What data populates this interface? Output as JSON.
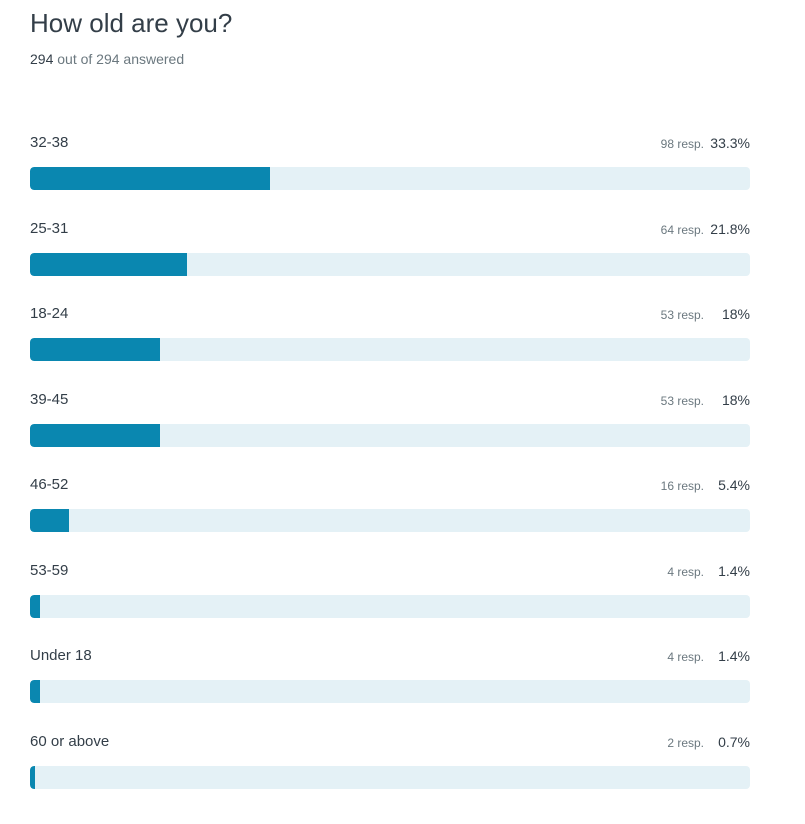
{
  "question": {
    "title": "How old are you?",
    "answered_count": "294",
    "answered_suffix": "out of 294 answered"
  },
  "colors": {
    "bar_fill": "#0a87b0",
    "bar_track": "#e4f1f6",
    "text": "#333e48",
    "muted": "#6b787f"
  },
  "chart_data": {
    "type": "bar",
    "title": "How old are you?",
    "total": 294,
    "categories": [
      "32-38",
      "25-31",
      "18-24",
      "39-45",
      "46-52",
      "53-59",
      "Under 18",
      "60 or above"
    ],
    "responses": [
      98,
      64,
      53,
      53,
      16,
      4,
      4,
      2
    ],
    "response_labels": [
      "98 resp.",
      "64 resp.",
      "53 resp.",
      "53 resp.",
      "16 resp.",
      "4 resp.",
      "4 resp.",
      "2 resp."
    ],
    "values": [
      33.3,
      21.8,
      18,
      18,
      5.4,
      1.4,
      1.4,
      0.7
    ],
    "percent_labels": [
      "33.3%",
      "21.8%",
      "18%",
      "18%",
      "5.4%",
      "1.4%",
      "1.4%",
      "0.7%"
    ],
    "xlim": [
      0,
      100
    ]
  }
}
